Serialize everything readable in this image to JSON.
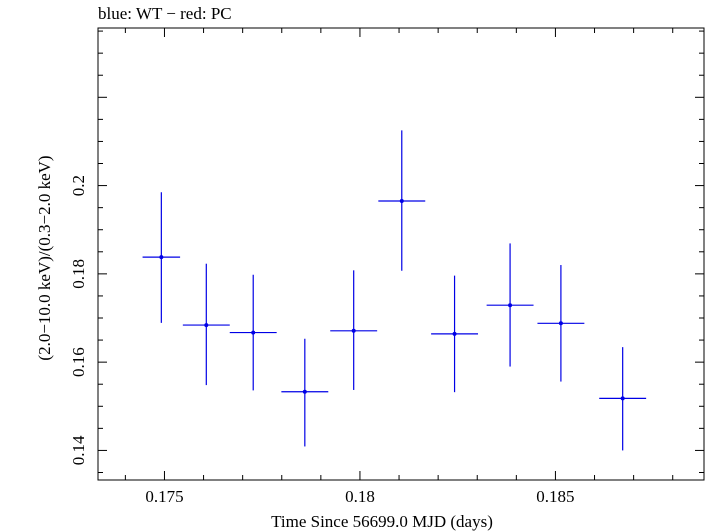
{
  "chart_data": {
    "type": "scatter",
    "title": "blue: WT − red: PC",
    "xlabel": "Time Since 56699.0 MJD (days)",
    "ylabel": "(2.0−10.0 keV)/(0.3−2.0 keV)",
    "xlim": [
      0.1733,
      0.1888
    ],
    "ylim": [
      0.1333,
      0.2357
    ],
    "x_ticks": [
      {
        "value": 0.175,
        "label": "0.175"
      },
      {
        "value": 0.18,
        "label": "0.18"
      },
      {
        "value": 0.185,
        "label": "0.185"
      }
    ],
    "y_ticks": [
      {
        "value": 0.14,
        "label": "0.14"
      },
      {
        "value": 0.16,
        "label": "0.16"
      },
      {
        "value": 0.18,
        "label": "0.18"
      },
      {
        "value": 0.2,
        "label": "0.2"
      }
    ],
    "grid": false,
    "series": [
      {
        "color": "#0000e6",
        "points": [
          {
            "x": 0.17492,
            "y": 0.1838,
            "xerr": 0.00048,
            "yerr_low": 0.0149,
            "yerr_high": 0.0147
          },
          {
            "x": 0.17607,
            "y": 0.1684,
            "xerr": 0.0006,
            "yerr_low": 0.0136,
            "yerr_high": 0.0139
          },
          {
            "x": 0.17727,
            "y": 0.1667,
            "xerr": 0.0006,
            "yerr_low": 0.0131,
            "yerr_high": 0.0131
          },
          {
            "x": 0.17859,
            "y": 0.1533,
            "xerr": 0.0006,
            "yerr_low": 0.0124,
            "yerr_high": 0.012
          },
          {
            "x": 0.17984,
            "y": 0.1671,
            "xerr": 0.0006,
            "yerr_low": 0.0134,
            "yerr_high": 0.0137
          },
          {
            "x": 0.18107,
            "y": 0.1965,
            "xerr": 0.0006,
            "yerr_low": 0.0158,
            "yerr_high": 0.016
          },
          {
            "x": 0.18242,
            "y": 0.1664,
            "xerr": 0.0006,
            "yerr_low": 0.0132,
            "yerr_high": 0.0132
          },
          {
            "x": 0.18384,
            "y": 0.1729,
            "xerr": 0.0006,
            "yerr_low": 0.0139,
            "yerr_high": 0.014
          },
          {
            "x": 0.18514,
            "y": 0.1688,
            "xerr": 0.0006,
            "yerr_low": 0.0132,
            "yerr_high": 0.0132
          },
          {
            "x": 0.18672,
            "y": 0.1518,
            "xerr": 0.0006,
            "yerr_low": 0.0118,
            "yerr_high": 0.0116
          }
        ]
      }
    ]
  }
}
